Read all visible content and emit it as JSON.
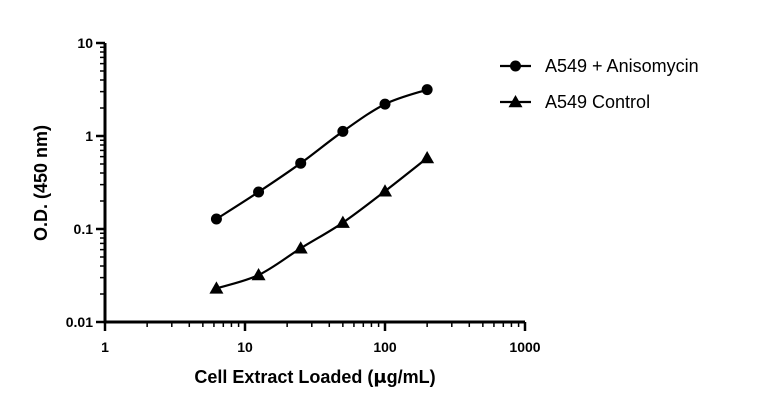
{
  "chart_data": {
    "type": "scatter",
    "xscale": "log",
    "yscale": "log",
    "xlim": [
      1,
      1000
    ],
    "ylim": [
      0.01,
      10
    ],
    "xlabel_parts": [
      "Cell Extract Loaded (",
      "μ",
      "g/mL)"
    ],
    "ylabel": "O.D. (450 nm)",
    "x_ticks": [
      1,
      10,
      100,
      1000
    ],
    "x_tick_labels": [
      "1",
      "10",
      "100",
      "1000"
    ],
    "y_ticks": [
      0.01,
      0.1,
      1,
      10
    ],
    "y_tick_labels": [
      "0.01",
      "0.1",
      "1",
      "10"
    ],
    "legend_position": "top-right",
    "grid": false,
    "series": [
      {
        "name": "A549 + Anisomycin",
        "marker": "circle",
        "color": "#000000",
        "x": [
          6.25,
          12.5,
          25,
          50,
          100,
          200
        ],
        "y": [
          0.128,
          0.25,
          0.51,
          1.12,
          2.2,
          3.15
        ]
      },
      {
        "name": "A549 Control",
        "marker": "triangle",
        "color": "#000000",
        "x": [
          6.25,
          12.5,
          25,
          50,
          100,
          200
        ],
        "y": [
          0.023,
          0.032,
          0.062,
          0.117,
          0.255,
          0.58
        ]
      }
    ]
  }
}
